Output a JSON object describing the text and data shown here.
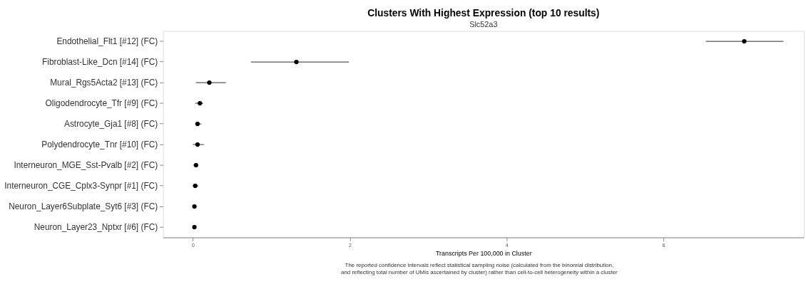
{
  "chart_data": {
    "type": "scatter",
    "title": "Clusters With Highest Expression (top 10 results)",
    "subtitle": "Slc52a3",
    "xlabel": "Transcripts Per 100,000 in Cluster",
    "orientation": "horizontal",
    "categories": [
      "Endothelial_Flt1 [#12] (FC)",
      "Fibroblast-Like_Dcn [#14] (FC)",
      "Mural_Rgs5Acta2 [#13] (FC)",
      "Oligodendrocyte_Tfr [#9] (FC)",
      "Astrocyte_Gja1 [#8] (FC)",
      "Polydendrocyte_Tnr [#10] (FC)",
      "Interneuron_MGE_Sst-Pvalb [#2] (FC)",
      "Interneuron_CGE_Cplx3-Synpr [#1] (FC)",
      "Neuron_Layer6Subplate_Syt6 [#3] (FC)",
      "Neuron_Layer23_Nptxr [#6] (FC)"
    ],
    "series": [
      {
        "color": "#000000",
        "values": [
          7.03,
          1.32,
          0.21,
          0.09,
          0.06,
          0.06,
          0.04,
          0.03,
          0.02,
          0.02
        ],
        "errors": [
          [
            6.54,
            7.53
          ],
          [
            0.74,
            1.99
          ],
          [
            0.04,
            0.42
          ],
          [
            0.03,
            0.13
          ],
          [
            0.03,
            0.11
          ],
          [
            0.0,
            0.14
          ],
          [
            0.01,
            0.07
          ],
          [
            0.0,
            0.07
          ],
          null,
          null
        ]
      }
    ],
    "xlim": [
      -0.38,
      7.79
    ],
    "xticks": [
      0,
      2,
      4,
      6
    ],
    "grid": false,
    "marker": "circle",
    "annotations": [
      "The reported confidence intervals reflect statistical sampling noise (calculated from the binomial distribution,\nand reflecting total number of UMIs ascertained by cluster) rather than cell-to-cell heterogeneity within a cluster"
    ]
  }
}
